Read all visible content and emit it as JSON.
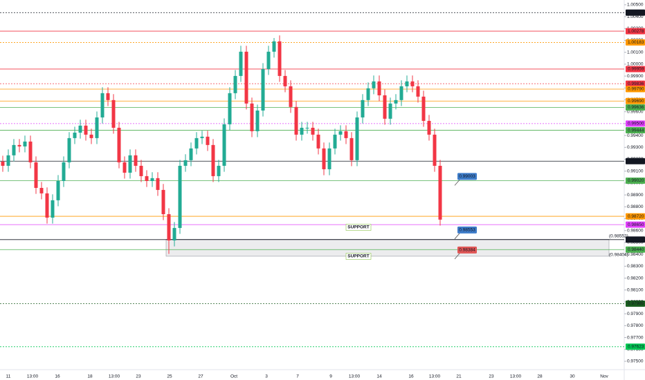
{
  "chart_data": {
    "type": "candlestick",
    "up_color": "#22ab94",
    "down_color": "#f23645",
    "ylim": [
      0.9743,
      1.0054
    ],
    "yticks": [
      {
        "value": 1.005,
        "label": "1.00500"
      },
      {
        "value": 1.004,
        "label": "1.00400"
      },
      {
        "value": 1.003,
        "label": "1.00300"
      },
      {
        "value": 1.002,
        "label": "1.00200"
      },
      {
        "value": 1.001,
        "label": "1.00100"
      },
      {
        "value": 1.0,
        "label": "1.00000"
      },
      {
        "value": 0.999,
        "label": "0.99900"
      },
      {
        "value": 0.998,
        "label": "0.99800"
      },
      {
        "value": 0.997,
        "label": "0.99700"
      },
      {
        "value": 0.996,
        "label": "0.99600"
      },
      {
        "value": 0.995,
        "label": "0.99500"
      },
      {
        "value": 0.994,
        "label": "0.99400"
      },
      {
        "value": 0.993,
        "label": "0.99300"
      },
      {
        "value": 0.992,
        "label": "0.99200"
      },
      {
        "value": 0.991,
        "label": "0.99100"
      },
      {
        "value": 0.99,
        "label": "0.99000"
      },
      {
        "value": 0.989,
        "label": "0.98900"
      },
      {
        "value": 0.988,
        "label": "0.98800"
      },
      {
        "value": 0.987,
        "label": "0.98700"
      },
      {
        "value": 0.986,
        "label": "0.98600"
      },
      {
        "value": 0.985,
        "label": "0.98500"
      },
      {
        "value": 0.984,
        "label": "0.98400"
      },
      {
        "value": 0.983,
        "label": "0.98300"
      },
      {
        "value": 0.982,
        "label": "0.98200"
      },
      {
        "value": 0.981,
        "label": "0.98100"
      },
      {
        "value": 0.98,
        "label": "0.98000"
      },
      {
        "value": 0.979,
        "label": "0.97900"
      },
      {
        "value": 0.978,
        "label": "0.97800"
      },
      {
        "value": 0.977,
        "label": "0.97700"
      },
      {
        "value": 0.976,
        "label": "0.97600"
      },
      {
        "value": 0.975,
        "label": "0.97500"
      }
    ],
    "x_labels": [
      "11",
      "13:00",
      "16",
      "18",
      "13:00",
      "23",
      "25",
      "27",
      "Oct",
      "3",
      "7",
      "9",
      "13:00",
      "14",
      "16",
      "13:00",
      "21",
      "23",
      "13:00",
      "28",
      "30",
      "Nov"
    ],
    "open": [
      0.9918,
      0.99145,
      0.99233,
      0.9932,
      0.99308,
      0.99349,
      0.99174,
      0.98959,
      0.98913,
      0.98709,
      0.98855,
      0.99017,
      0.99174,
      0.99378,
      0.99424,
      0.99483,
      0.99407,
      0.99378,
      0.99552,
      0.99756,
      0.99698,
      0.99465,
      0.99174,
      0.99087,
      0.99233,
      0.99145,
      0.99058,
      0.99017,
      0.99041,
      0.98942,
      0.98738,
      0.98517,
      0.98622,
      0.99145,
      0.99192,
      0.99291,
      0.99378,
      0.9939,
      0.9932,
      0.99058,
      0.99145,
      0.99494,
      0.99756,
      0.99901,
      1.00105,
      0.99669,
      0.99436,
      0.9961,
      0.99959,
      1.00105,
      1.00192,
      0.99901,
      0.99814,
      0.9964,
      0.99407,
      0.99465,
      0.99465,
      0.99407,
      0.99291,
      0.99116,
      0.99291,
      0.99407,
      0.99436,
      0.99378,
      0.99192,
      0.99552,
      0.99698,
      0.99797,
      0.99855,
      0.99738,
      0.99541,
      0.99669,
      0.99698,
      0.99814,
      0.99855,
      0.99814,
      0.99727,
      0.99523,
      0.99407,
      0.99145
    ],
    "high": [
      0.9923,
      0.99283,
      0.9937,
      0.9937,
      0.99399,
      0.99399,
      0.99224,
      0.99009,
      0.98963,
      0.98905,
      0.99067,
      0.99224,
      0.99428,
      0.99474,
      0.99533,
      0.99533,
      0.99457,
      0.99602,
      0.99806,
      0.99806,
      0.99748,
      0.99515,
      0.99224,
      0.99283,
      0.99283,
      0.99195,
      0.99108,
      0.99091,
      0.99091,
      0.98992,
      0.98788,
      0.98672,
      0.99195,
      0.99242,
      0.99341,
      0.99428,
      0.9944,
      0.9944,
      0.9937,
      0.99195,
      0.99544,
      0.99806,
      0.99951,
      1.00155,
      1.00155,
      0.99719,
      0.9966,
      1.00009,
      1.00155,
      1.0022,
      1.00242,
      0.99951,
      0.99864,
      0.9969,
      0.99515,
      0.99515,
      0.99515,
      0.99457,
      0.99341,
      0.99341,
      0.99457,
      0.99486,
      0.99486,
      0.99428,
      0.99602,
      0.99748,
      0.99847,
      0.99905,
      0.99905,
      0.99788,
      0.99719,
      0.99748,
      0.99864,
      0.99905,
      0.99905,
      0.99864,
      0.99777,
      0.99573,
      0.99457,
      0.99195
    ],
    "low": [
      0.99095,
      0.99095,
      0.99183,
      0.99258,
      0.99258,
      0.99124,
      0.98909,
      0.98863,
      0.98659,
      0.98659,
      0.98805,
      0.98967,
      0.99124,
      0.99328,
      0.99374,
      0.99357,
      0.99328,
      0.99328,
      0.99502,
      0.99648,
      0.99415,
      0.99124,
      0.99037,
      0.99037,
      0.99095,
      0.99008,
      0.98967,
      0.98967,
      0.98892,
      0.98688,
      0.98404,
      0.98467,
      0.98572,
      0.99095,
      0.99142,
      0.99241,
      0.99328,
      0.9927,
      0.99008,
      0.99008,
      0.99095,
      0.99444,
      0.99706,
      0.99851,
      0.99619,
      0.99386,
      0.99386,
      0.9956,
      0.99909,
      1.00055,
      0.99851,
      0.99764,
      0.9959,
      0.99357,
      0.99357,
      0.99415,
      0.99357,
      0.99241,
      0.99066,
      0.99066,
      0.99241,
      0.99357,
      0.99328,
      0.99142,
      0.99142,
      0.99502,
      0.99648,
      0.99747,
      0.99688,
      0.99491,
      0.99491,
      0.99619,
      0.99648,
      0.99764,
      0.99764,
      0.99677,
      0.99473,
      0.99357,
      0.99095,
      0.98642
    ],
    "close": [
      0.99145,
      0.99233,
      0.9932,
      0.99308,
      0.99349,
      0.99174,
      0.98959,
      0.98913,
      0.98709,
      0.98855,
      0.99017,
      0.99174,
      0.99378,
      0.99424,
      0.99483,
      0.99407,
      0.99378,
      0.99552,
      0.99756,
      0.99698,
      0.99465,
      0.99174,
      0.99087,
      0.99233,
      0.99145,
      0.99058,
      0.99017,
      0.99041,
      0.98942,
      0.98738,
      0.98517,
      0.98622,
      0.99145,
      0.99192,
      0.99291,
      0.99378,
      0.9939,
      0.9932,
      0.99058,
      0.99145,
      0.99494,
      0.99756,
      0.99901,
      1.00105,
      0.99669,
      0.99436,
      0.9961,
      0.99959,
      1.00105,
      1.00192,
      0.99901,
      0.99814,
      0.9964,
      0.99407,
      0.99465,
      0.99465,
      0.99407,
      0.99291,
      0.99116,
      0.99291,
      0.99407,
      0.99436,
      0.99378,
      0.99192,
      0.99552,
      0.99698,
      0.99797,
      0.99855,
      0.99738,
      0.99541,
      0.99669,
      0.99698,
      0.99814,
      0.99855,
      0.99814,
      0.99727,
      0.99523,
      0.99407,
      0.99145,
      0.98692
    ],
    "levels": [
      {
        "value": 1.00434,
        "label": "1.00434",
        "color": "#131722",
        "style": "dotted"
      },
      {
        "value": 1.00278,
        "label": "1.00278",
        "color": "#f23645",
        "style": "solid"
      },
      {
        "value": 1.00183,
        "label": "1.00183",
        "color": "#ff9800",
        "style": "dotted"
      },
      {
        "value": 0.99959,
        "label": "0.99959",
        "color": "#f23645",
        "style": "solid"
      },
      {
        "value": 0.99836,
        "label": "0.99836",
        "color": "#f23645",
        "style": "dotted"
      },
      {
        "value": 0.9979,
        "label": "0.99790",
        "color": "#ff9800",
        "style": "solid"
      },
      {
        "value": 0.9969,
        "label": "0.99690",
        "color": "#ff9800",
        "style": "solid"
      },
      {
        "value": 0.99636,
        "label": "0.99636",
        "color": "#4caf50",
        "style": "solid"
      },
      {
        "value": 0.995,
        "label": "0.99500",
        "color": "#e040fb",
        "style": "dotted"
      },
      {
        "value": 0.99444,
        "label": "0.99444",
        "color": "#4caf50",
        "style": "solid"
      },
      {
        "value": 0.99184,
        "label": "0.99184",
        "color": "#131722",
        "style": "solid"
      },
      {
        "value": 0.9902,
        "label": "0.99020",
        "color": "#4caf50",
        "style": "solid"
      },
      {
        "value": 0.9872,
        "label": "0.98720",
        "color": "#ff9800",
        "style": "solid"
      },
      {
        "value": 0.9865,
        "label": "0.98650",
        "color": "#e040fb",
        "style": "solid"
      },
      {
        "value": 0.98524,
        "label": "0.98524",
        "color": "#131722",
        "style": "solid"
      },
      {
        "value": 0.9844,
        "label": "0.98440",
        "color": "#4caf50",
        "style": "solid"
      },
      {
        "value": 0.97985,
        "label": "0.97985",
        "color": "#1b5e20",
        "style": "dotted"
      },
      {
        "value": 0.97623,
        "label": "0.97623",
        "color": "#00c853",
        "style": "dotted"
      }
    ],
    "zone": [
      0.98384,
      0.98527
    ],
    "callouts": [
      {
        "value": 0.99003,
        "label": "0.99003",
        "color": "#3d7cc9"
      },
      {
        "value": 0.98553,
        "label": "0.98553",
        "color": "#3d7cc9"
      },
      {
        "value": 0.98384,
        "label": "0.98384",
        "color": "#e05656"
      }
    ],
    "annotations": [
      "SUPPORT",
      "SUPPORT",
      "(0.98552)",
      "(0.98404)"
    ]
  }
}
